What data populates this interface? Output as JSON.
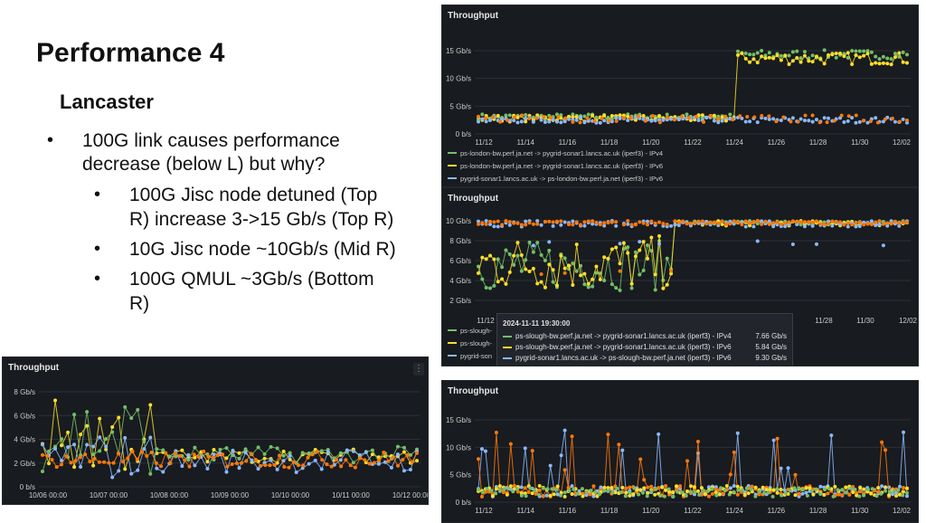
{
  "slide": {
    "title": "Performance 4",
    "subhead": "Lancaster",
    "bullet1": "100G link causes performance decrease (below L) but why?",
    "bullet1_line1": "100G link causes performance",
    "bullet1_line2": "decrease (below L) but why?",
    "sub1_line1": "100G Jisc node detuned (Top",
    "sub1_line2": "R) increase 3->15 Gb/s (Top R)",
    "sub2": "10G Jisc node ~10Gb/s (Mid R)",
    "sub3_line1": "100G QMUL ~3Gb/s  (Bottom",
    "sub3_line2": "R)",
    "bullet_glyph": "•"
  },
  "colors": {
    "green": "#73bf69",
    "yellow": "#fade2a",
    "blue": "#8ab8ff",
    "orange": "#ff780a",
    "panel_bg": "#181b1f",
    "grid": "#2c3038",
    "axis_text": "#cccccc"
  },
  "panels": {
    "top": {
      "title": "Throughput",
      "y_ticks": [
        "15 Gb/s",
        "10 Gb/s",
        "5 Gb/s",
        "0 b/s"
      ],
      "x_ticks": [
        "11/12",
        "11/14",
        "11/16",
        "11/18",
        "11/20",
        "11/22",
        "11/24",
        "11/26",
        "11/28",
        "11/30",
        "12/02"
      ],
      "legend": [
        {
          "label": "ps-london-bw.perf.ja.net -> pygrid-sonar1.lancs.ac.uk (iperf3) - IPv4",
          "color": "green"
        },
        {
          "label": "ps-london-bw.perf.ja.net -> pygrid-sonar1.lancs.ac.uk (iperf3) - IPv6",
          "color": "yellow"
        },
        {
          "label": "pygrid-sonar1.lancs.ac.uk -> ps-london-bw.perf.ja.net (iperf3) - IPv6",
          "color": "blue"
        }
      ]
    },
    "mid": {
      "title": "Throughput",
      "y_ticks": [
        "10 Gb/s",
        "8 Gb/s",
        "6 Gb/s",
        "4 Gb/s",
        "2 Gb/s"
      ],
      "x_ticks": [
        "11/12",
        "11/28",
        "11/30",
        "12/02"
      ],
      "legend": [
        {
          "label": "ps-slough-",
          "color": "green"
        },
        {
          "label": "ps-slough-",
          "color": "yellow"
        },
        {
          "label": "pygrid-son",
          "color": "blue"
        }
      ],
      "tooltip": {
        "time": "2024-11-11 19:30:00",
        "rows": [
          {
            "label": "ps-slough-bw.perf.ja.net -> pygrid-sonar1.lancs.ac.uk (iperf3) - IPv4",
            "value": "7.66 Gb/s",
            "color": "green"
          },
          {
            "label": "ps-slough-bw.perf.ja.net -> pygrid-sonar1.lancs.ac.uk (iperf3) - IPv6",
            "value": "5.84 Gb/s",
            "color": "yellow"
          },
          {
            "label": "pygrid-sonar1.lancs.ac.uk -> ps-slough-bw.perf.ja.net (iperf3) - IPv6",
            "value": "9.30 Gb/s",
            "color": "blue"
          }
        ]
      }
    },
    "bottom": {
      "title": "Throughput",
      "y_ticks": [
        "15 Gb/s",
        "10 Gb/s",
        "5 Gb/s",
        "0 b/s"
      ],
      "x_ticks": [
        "11/12",
        "11/14",
        "11/16",
        "11/18",
        "11/20",
        "11/22",
        "11/24",
        "11/26",
        "11/28",
        "11/30",
        "12/02"
      ]
    },
    "left": {
      "title": "Throughput",
      "kebab": "⋮",
      "y_ticks": [
        "8 Gb/s",
        "6 Gb/s",
        "4 Gb/s",
        "2 Gb/s",
        "0 b/s"
      ],
      "x_ticks": [
        "10/06 00:00",
        "10/07 00:00",
        "10/08 00:00",
        "10/09 00:00",
        "10/10 00:00",
        "10/11 00:00",
        "10/12 00:00"
      ]
    }
  }
}
